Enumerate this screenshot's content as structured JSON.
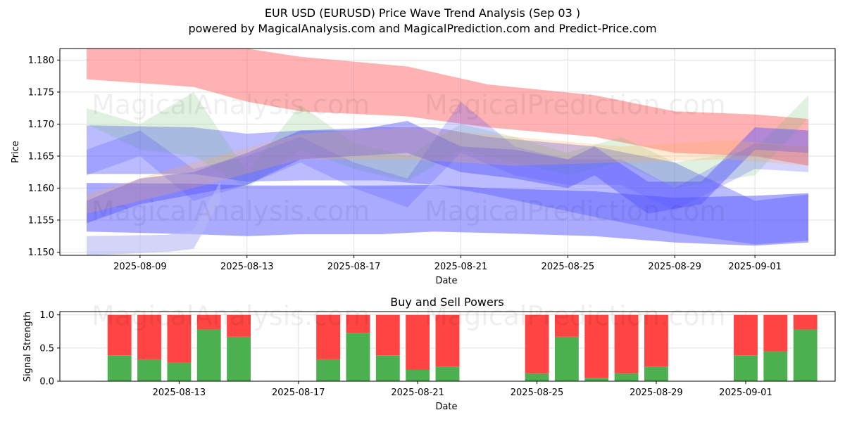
{
  "title": "EUR USD (EURUSD) Price Wave Trend Analysis (Sep 03 )",
  "subtitle": "powered by MagicalAnalysis.com and MagicalPrediction.com and Predict-Price.com",
  "watermarks": [
    "MagicalAnalysis.com",
    "MagicalPrediction.com"
  ],
  "colors": {
    "buy": "#4caf50",
    "sell": "#ff4444",
    "band_red": "#ff6666",
    "band_blue": "#5555ff",
    "band_green": "#66bb66",
    "band_orange": "#ffaa55"
  },
  "chart_data": [
    {
      "type": "area",
      "xlabel": "Date",
      "ylabel": "Price",
      "xlim": [
        "2025-08-06",
        "2025-09-04"
      ],
      "ylim": [
        1.1495,
        1.1818
      ],
      "y_ticks": [
        "1.150",
        "1.155",
        "1.160",
        "1.165",
        "1.170",
        "1.175",
        "1.180"
      ],
      "x_ticks": [
        "2025-08-09",
        "2025-08-13",
        "2025-08-17",
        "2025-08-21",
        "2025-08-25",
        "2025-08-29",
        "2025-09-01"
      ],
      "grid": true,
      "bands": [
        {
          "color": "red",
          "opacity": 0.5,
          "x": [
            "2025-08-07",
            "2025-08-11",
            "2025-08-13",
            "2025-08-15",
            "2025-08-19",
            "2025-08-22",
            "2025-08-26",
            "2025-08-29",
            "2025-09-01",
            "2025-09-03"
          ],
          "lower": [
            1.177,
            1.1758,
            1.1735,
            1.172,
            1.1712,
            1.1695,
            1.168,
            1.1655,
            1.165,
            1.1635
          ],
          "upper": [
            1.1818,
            1.1818,
            1.1818,
            1.1805,
            1.179,
            1.1762,
            1.1745,
            1.172,
            1.1715,
            1.1708
          ]
        },
        {
          "color": "blue",
          "opacity": 0.5,
          "x": [
            "2025-08-07",
            "2025-08-11",
            "2025-08-13",
            "2025-08-15",
            "2025-08-18",
            "2025-08-20",
            "2025-08-22",
            "2025-08-26",
            "2025-08-29",
            "2025-09-01",
            "2025-09-03"
          ],
          "lower": [
            1.1532,
            1.1528,
            1.1525,
            1.1528,
            1.1528,
            1.1532,
            1.153,
            1.1525,
            1.1515,
            1.151,
            1.1515
          ],
          "upper": [
            1.1608,
            1.1607,
            1.1604,
            1.1604,
            1.1604,
            1.1605,
            1.16,
            1.1595,
            1.1585,
            1.1588,
            1.1592
          ]
        },
        {
          "color": "blue",
          "opacity": 0.4,
          "x": [
            "2025-08-07",
            "2025-08-11",
            "2025-08-13",
            "2025-08-15",
            "2025-08-18",
            "2025-08-20",
            "2025-08-22",
            "2025-08-26",
            "2025-08-29",
            "2025-09-01",
            "2025-09-03"
          ],
          "lower": [
            1.1622,
            1.1622,
            1.161,
            1.1612,
            1.1612,
            1.1605,
            1.159,
            1.1555,
            1.153,
            1.1512,
            1.1518
          ],
          "upper": [
            1.1698,
            1.1695,
            1.1685,
            1.169,
            1.1695,
            1.1695,
            1.168,
            1.1665,
            1.164,
            1.158,
            1.159
          ]
        },
        {
          "color": "green",
          "opacity": 0.2,
          "x": [
            "2025-08-07",
            "2025-08-09",
            "2025-08-11",
            "2025-08-13",
            "2025-08-15",
            "2025-08-17",
            "2025-08-19",
            "2025-08-21",
            "2025-08-23",
            "2025-08-25",
            "2025-08-27",
            "2025-08-29",
            "2025-09-01",
            "2025-09-03"
          ],
          "lower": [
            1.17,
            1.166,
            1.165,
            1.16,
            1.166,
            1.163,
            1.161,
            1.166,
            1.164,
            1.162,
            1.164,
            1.16,
            1.162,
            1.171
          ],
          "upper": [
            1.1725,
            1.17,
            1.175,
            1.1625,
            1.173,
            1.167,
            1.165,
            1.17,
            1.168,
            1.1655,
            1.168,
            1.164,
            1.166,
            1.1745
          ]
        },
        {
          "color": "blue",
          "opacity": 0.25,
          "x": [
            "2025-08-07",
            "2025-08-09",
            "2025-08-11",
            "2025-08-13",
            "2025-08-15",
            "2025-08-17",
            "2025-08-19",
            "2025-08-21",
            "2025-08-23",
            "2025-08-25",
            "2025-08-27",
            "2025-08-29",
            "2025-09-01",
            "2025-09-03"
          ],
          "lower": [
            1.162,
            1.165,
            1.158,
            1.1605,
            1.164,
            1.16,
            1.157,
            1.1655,
            1.162,
            1.1605,
            1.1605,
            1.1565,
            1.163,
            1.1625
          ],
          "upper": [
            1.166,
            1.169,
            1.163,
            1.165,
            1.168,
            1.164,
            1.1615,
            1.1735,
            1.1665,
            1.1645,
            1.1645,
            1.16,
            1.167,
            1.1665
          ]
        },
        {
          "color": "blue",
          "opacity": 0.45,
          "x": [
            "2025-08-07",
            "2025-08-09",
            "2025-08-11",
            "2025-08-13",
            "2025-08-15",
            "2025-08-17",
            "2025-08-19",
            "2025-08-21",
            "2025-08-23",
            "2025-08-25",
            "2025-08-26",
            "2025-08-28",
            "2025-08-30",
            "2025-09-01",
            "2025-09-03"
          ],
          "lower": [
            1.1545,
            1.1575,
            1.159,
            1.1605,
            1.1645,
            1.165,
            1.1655,
            1.1625,
            1.1615,
            1.16,
            1.162,
            1.156,
            1.1575,
            1.166,
            1.1655
          ],
          "upper": [
            1.158,
            1.1615,
            1.1625,
            1.1655,
            1.169,
            1.169,
            1.1705,
            1.1665,
            1.166,
            1.1645,
            1.1665,
            1.161,
            1.161,
            1.1695,
            1.169
          ]
        },
        {
          "color": "orange",
          "opacity": 0.25,
          "x": [
            "2025-08-07",
            "2025-08-11",
            "2025-08-15",
            "2025-08-19",
            "2025-08-23",
            "2025-08-27",
            "2025-08-31",
            "2025-09-03"
          ],
          "lower": [
            1.156,
            1.16,
            1.1645,
            1.1645,
            1.1635,
            1.164,
            1.1645,
            1.1635
          ],
          "upper": [
            1.159,
            1.164,
            1.1685,
            1.1695,
            1.168,
            1.1665,
            1.1675,
            1.1665
          ]
        },
        {
          "color": "lavender",
          "opacity": 0.6,
          "x": [
            "2025-08-07",
            "2025-08-10",
            "2025-08-11",
            "2025-08-12"
          ],
          "lower": [
            1.1495,
            1.15,
            1.1505,
            1.158
          ],
          "upper": [
            1.1525,
            1.1527,
            1.1535,
            1.161
          ]
        }
      ]
    },
    {
      "type": "bar",
      "title": "Buy and Sell Powers",
      "xlabel": "Date",
      "ylabel": "Signal Strength",
      "xlim": [
        "2025-08-09",
        "2025-09-04"
      ],
      "ylim": [
        0,
        1.05
      ],
      "y_ticks": [
        "0.0",
        "0.5",
        "1.0"
      ],
      "x_ticks": [
        "2025-08-13",
        "2025-08-17",
        "2025-08-21",
        "2025-08-25",
        "2025-08-29",
        "2025-09-01"
      ],
      "grid": true,
      "dates": [
        "2025-08-11",
        "2025-08-12",
        "2025-08-13",
        "2025-08-14",
        "2025-08-15",
        "2025-08-18",
        "2025-08-19",
        "2025-08-20",
        "2025-08-21",
        "2025-08-22",
        "2025-08-25",
        "2025-08-26",
        "2025-08-27",
        "2025-08-28",
        "2025-08-29",
        "2025-09-01",
        "2025-09-02",
        "2025-09-03"
      ],
      "buy": [
        0.39,
        0.33,
        0.28,
        0.78,
        0.67,
        0.33,
        0.73,
        0.39,
        0.17,
        0.22,
        0.12,
        0.67,
        0.05,
        0.12,
        0.22,
        0.39,
        0.45,
        0.78
      ],
      "sell": [
        0.61,
        0.67,
        0.72,
        0.22,
        0.33,
        0.67,
        0.27,
        0.61,
        0.83,
        0.78,
        0.88,
        0.33,
        0.95,
        0.88,
        0.78,
        0.61,
        0.55,
        0.22
      ]
    }
  ]
}
